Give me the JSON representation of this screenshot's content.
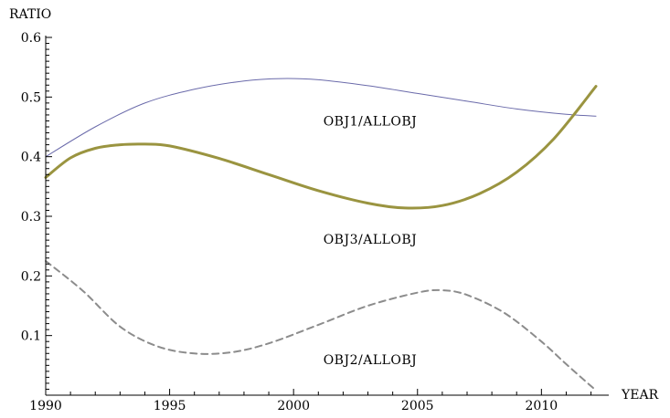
{
  "chart_data": {
    "type": "line",
    "xlabel": "YEAR",
    "ylabel": "RATIO",
    "xlim": [
      1990,
      2012.2
    ],
    "ylim": [
      0,
      0.6
    ],
    "xticks": [
      1990,
      1995,
      2000,
      2005,
      2010
    ],
    "xtick_labels": [
      "1990",
      "1995",
      "2000",
      "2005",
      "2010"
    ],
    "yticks": [
      0.1,
      0.2,
      0.3,
      0.4,
      0.5,
      0.6
    ],
    "ytick_labels": [
      "0.1",
      "0.2",
      "0.3",
      "0.4",
      "0.5",
      "0.6"
    ],
    "grid": false,
    "legend": "none",
    "annotations": [
      {
        "text": "OBJ1/ALLOBJ",
        "x": 2001.2,
        "y": 0.452
      },
      {
        "text": "OBJ3/ALLOBJ",
        "x": 2001.2,
        "y": 0.254
      },
      {
        "text": "OBJ2/ALLOBJ",
        "x": 2001.2,
        "y": 0.052
      }
    ],
    "series": [
      {
        "color": "#6a6aaa",
        "style": "solid",
        "width": 1,
        "points": [
          [
            1990,
            0.4
          ],
          [
            1992,
            0.45
          ],
          [
            1994,
            0.49
          ],
          [
            1996,
            0.513
          ],
          [
            1998,
            0.527
          ],
          [
            1999.5,
            0.531
          ],
          [
            2001,
            0.529
          ],
          [
            2003,
            0.519
          ],
          [
            2005,
            0.506
          ],
          [
            2007,
            0.493
          ],
          [
            2009,
            0.48
          ],
          [
            2011,
            0.471
          ],
          [
            2012.2,
            0.468
          ]
        ]
      },
      {
        "color": "#9a9440",
        "style": "solid",
        "width": 3,
        "points": [
          [
            1990,
            0.365
          ],
          [
            1991,
            0.398
          ],
          [
            1992,
            0.414
          ],
          [
            1993,
            0.42
          ],
          [
            1994,
            0.421
          ],
          [
            1995,
            0.418
          ],
          [
            1997,
            0.397
          ],
          [
            1999,
            0.37
          ],
          [
            2001,
            0.343
          ],
          [
            2003,
            0.322
          ],
          [
            2004.5,
            0.314
          ],
          [
            2006,
            0.318
          ],
          [
            2007.5,
            0.338
          ],
          [
            2009,
            0.374
          ],
          [
            2010.5,
            0.43
          ],
          [
            2012.2,
            0.518
          ]
        ]
      },
      {
        "color": "#8c8c8c",
        "style": "dashed",
        "width": 2,
        "points": [
          [
            1990,
            0.225
          ],
          [
            1991.5,
            0.175
          ],
          [
            1993,
            0.115
          ],
          [
            1994.5,
            0.082
          ],
          [
            1996,
            0.07
          ],
          [
            1997.5,
            0.072
          ],
          [
            1999,
            0.087
          ],
          [
            2001,
            0.118
          ],
          [
            2003,
            0.15
          ],
          [
            2005,
            0.172
          ],
          [
            2006,
            0.176
          ],
          [
            2007,
            0.168
          ],
          [
            2008.5,
            0.138
          ],
          [
            2010,
            0.09
          ],
          [
            2011,
            0.052
          ],
          [
            2012.2,
            0.008
          ]
        ]
      }
    ]
  }
}
